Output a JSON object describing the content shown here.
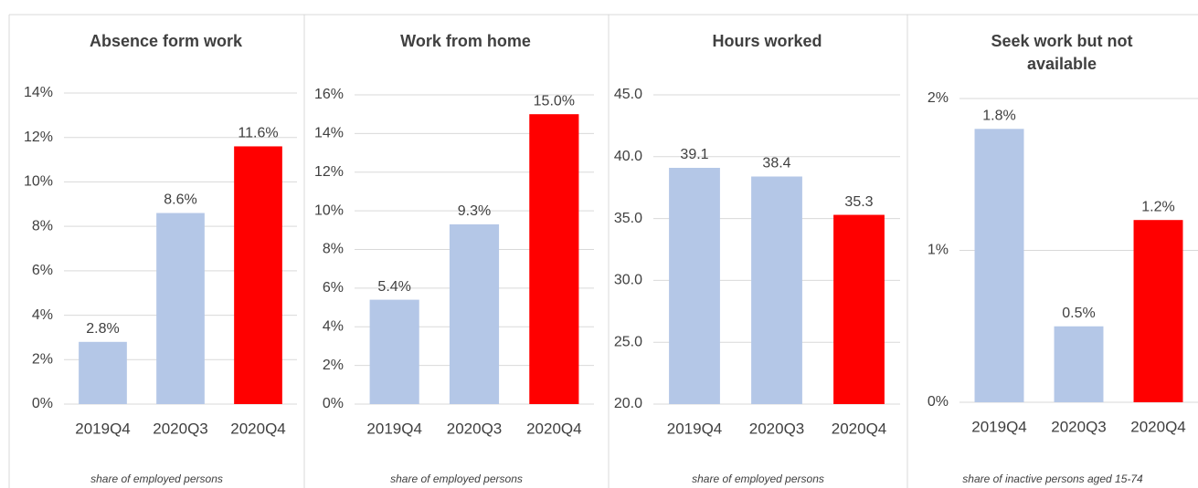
{
  "chart_data": [
    {
      "type": "bar",
      "title": "Absence form work",
      "categories": [
        "2019Q4",
        "2020Q3",
        "2020Q4"
      ],
      "values": [
        2.8,
        8.6,
        11.6
      ],
      "value_labels": [
        "2.8%",
        "8.6%",
        "11.6%"
      ],
      "colors": [
        "#b4c7e7",
        "#b4c7e7",
        "#ff0000"
      ],
      "ylim": [
        0,
        14
      ],
      "yticks": [
        {
          "value": 0,
          "label": "0%"
        },
        {
          "value": 2,
          "label": "2%"
        },
        {
          "value": 4,
          "label": "4%"
        },
        {
          "value": 6,
          "label": "6%"
        },
        {
          "value": 8,
          "label": "8%"
        },
        {
          "value": 10,
          "label": "10%"
        },
        {
          "value": 12,
          "label": "12%"
        },
        {
          "value": 14,
          "label": "14%"
        }
      ],
      "grid": true,
      "footnote": "share of employed persons"
    },
    {
      "type": "bar",
      "title": "Work from home",
      "categories": [
        "2019Q4",
        "2020Q3",
        "2020Q4"
      ],
      "values": [
        5.4,
        9.3,
        15.0
      ],
      "value_labels": [
        "5.4%",
        "9.3%",
        "15.0%"
      ],
      "colors": [
        "#b4c7e7",
        "#b4c7e7",
        "#ff0000"
      ],
      "ylim": [
        0,
        16
      ],
      "yticks": [
        {
          "value": 0,
          "label": "0%"
        },
        {
          "value": 2,
          "label": "2%"
        },
        {
          "value": 4,
          "label": "4%"
        },
        {
          "value": 6,
          "label": "6%"
        },
        {
          "value": 8,
          "label": "8%"
        },
        {
          "value": 10,
          "label": "10%"
        },
        {
          "value": 12,
          "label": "12%"
        },
        {
          "value": 14,
          "label": "14%"
        },
        {
          "value": 16,
          "label": "16%"
        }
      ],
      "grid": true,
      "footnote": "share of employed persons"
    },
    {
      "type": "bar",
      "title": "Hours worked",
      "categories": [
        "2019Q4",
        "2020Q3",
        "2020Q4"
      ],
      "values": [
        39.1,
        38.4,
        35.3
      ],
      "colors": [
        "#b4c7e7",
        "#b4c7e7",
        "#ff0000"
      ],
      "ylim": [
        20,
        45
      ],
      "yticks": [
        {
          "value": 20,
          "label": "20.0"
        },
        {
          "value": 25,
          "label": "25.0"
        },
        {
          "value": 30,
          "label": "30.0"
        },
        {
          "value": 35,
          "label": "35.0"
        },
        {
          "value": 40,
          "label": "40.0"
        },
        {
          "value": 45,
          "label": "45.0"
        }
      ],
      "grid": true,
      "footnote": "share of employed persons"
    },
    {
      "type": "bar",
      "title": "Seek work but not available",
      "categories": [
        "2019Q4",
        "2020Q3",
        "2020Q4"
      ],
      "values": [
        1.8,
        0.5,
        1.2
      ],
      "value_labels": [
        "1.8%",
        "0.5%",
        "1.2%"
      ],
      "colors": [
        "#b4c7e7",
        "#b4c7e7",
        "#ff0000"
      ],
      "ylim": [
        0,
        2
      ],
      "yticks": [
        {
          "value": 0,
          "label": "0%"
        },
        {
          "value": 1,
          "label": "1%"
        },
        {
          "value": 2,
          "label": "2%"
        }
      ],
      "grid": true,
      "footnote": "share of inactive persons aged 15-74"
    }
  ]
}
